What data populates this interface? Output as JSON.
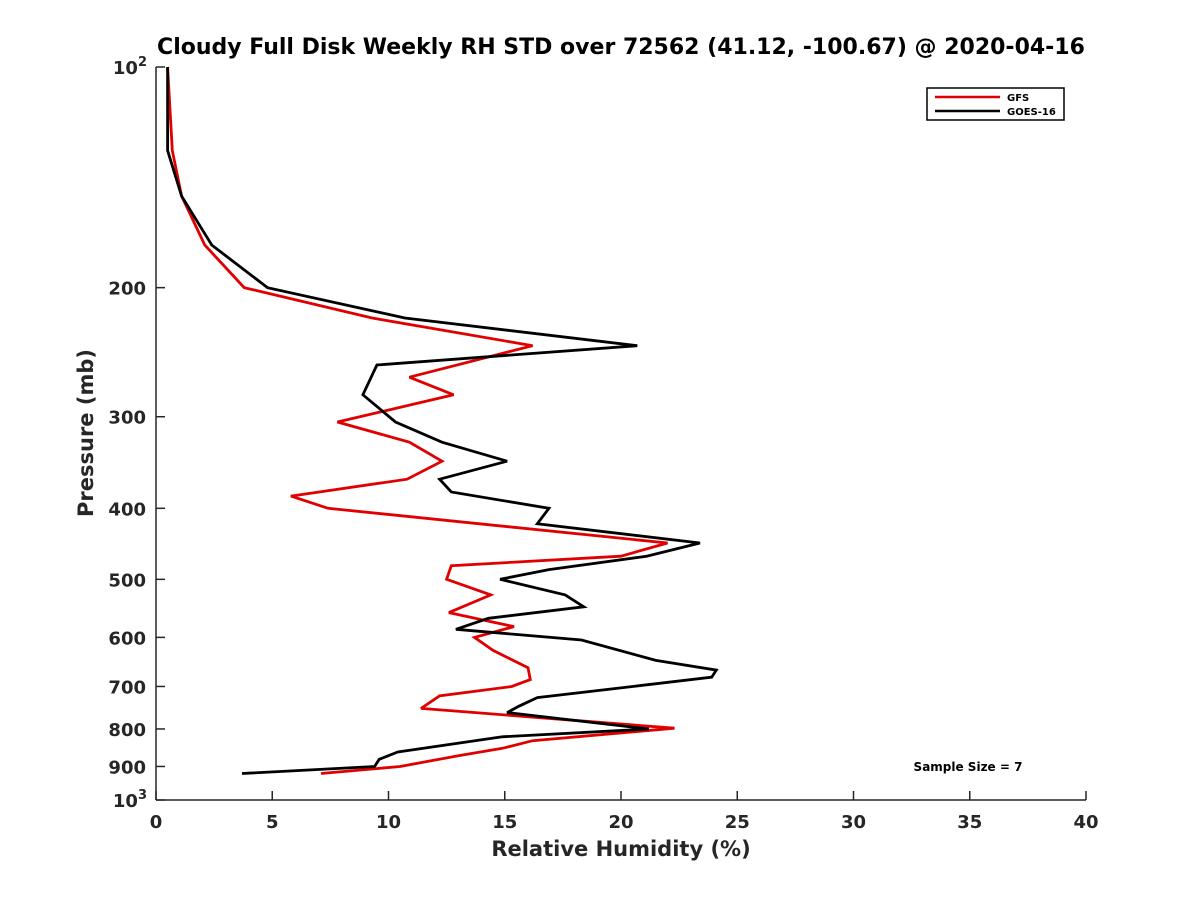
{
  "chart_data": {
    "type": "line",
    "title": "Cloudy Full Disk Weekly RH STD over 72562 (41.12, -100.67) @ 2020-04-16",
    "xlabel": "Relative Humidity (%)",
    "ylabel": "Pressure (mb)",
    "xlim": [
      0,
      40
    ],
    "ylim": [
      100,
      1000
    ],
    "yscale": "log",
    "y_reversed": true,
    "grid": false,
    "legend_position": "top-right",
    "x_ticks": [
      "0",
      "5",
      "10",
      "15",
      "20",
      "25",
      "30",
      "35",
      "40"
    ],
    "y_ticks": [
      {
        "value": 100,
        "base": "10",
        "exp": "2"
      },
      {
        "value": 200,
        "label": "200"
      },
      {
        "value": 300,
        "label": "300"
      },
      {
        "value": 400,
        "label": "400"
      },
      {
        "value": 500,
        "label": "500"
      },
      {
        "value": 600,
        "label": "600"
      },
      {
        "value": 700,
        "label": "700"
      },
      {
        "value": 800,
        "label": "800"
      },
      {
        "value": 900,
        "label": "900"
      },
      {
        "value": 1000,
        "base": "10",
        "exp": "3"
      }
    ],
    "series": [
      {
        "name": "GFS",
        "color": "#e00000",
        "points": [
          [
            0.5,
            100
          ],
          [
            0.7,
            130
          ],
          [
            1.1,
            150
          ],
          [
            2.1,
            175
          ],
          [
            3.8,
            200
          ],
          [
            9.3,
            220
          ],
          [
            16.2,
            240
          ],
          [
            10.9,
            265
          ],
          [
            12.8,
            280
          ],
          [
            7.8,
            305
          ],
          [
            10.9,
            325
          ],
          [
            12.3,
            345
          ],
          [
            10.8,
            365
          ],
          [
            5.8,
            385
          ],
          [
            7.4,
            400
          ],
          [
            22,
            446
          ],
          [
            20,
            465
          ],
          [
            12.7,
            479
          ],
          [
            12.5,
            500
          ],
          [
            14.4,
            525
          ],
          [
            12.6,
            555
          ],
          [
            15.4,
            580
          ],
          [
            13.7,
            600
          ],
          [
            14.5,
            625
          ],
          [
            16,
            660
          ],
          [
            16.1,
            685
          ],
          [
            15.3,
            700
          ],
          [
            12.2,
            721
          ],
          [
            11.4,
            750
          ],
          [
            22.3,
            798
          ],
          [
            16.2,
            830
          ],
          [
            14.9,
            850
          ],
          [
            13,
            870
          ],
          [
            10.5,
            900
          ],
          [
            7.1,
            920
          ]
        ]
      },
      {
        "name": "GOES-16",
        "color": "#000000",
        "points": [
          [
            0.5,
            100
          ],
          [
            0.5,
            130
          ],
          [
            1.1,
            150
          ],
          [
            2.4,
            175
          ],
          [
            4.8,
            200
          ],
          [
            10.7,
            220
          ],
          [
            20.7,
            240
          ],
          [
            9.5,
            255
          ],
          [
            8.9,
            280
          ],
          [
            10.3,
            305
          ],
          [
            12.3,
            325
          ],
          [
            15.1,
            345
          ],
          [
            12.2,
            365
          ],
          [
            12.7,
            380
          ],
          [
            16.9,
            400
          ],
          [
            16.4,
            420
          ],
          [
            23.4,
            446
          ],
          [
            21.1,
            465
          ],
          [
            16.9,
            485
          ],
          [
            14.8,
            500
          ],
          [
            17.6,
            525
          ],
          [
            18.4,
            545
          ],
          [
            14.3,
            565
          ],
          [
            12.9,
            585
          ],
          [
            18.3,
            605
          ],
          [
            21.5,
            645
          ],
          [
            24.1,
            665
          ],
          [
            23.9,
            680
          ],
          [
            20.5,
            700
          ],
          [
            16.4,
            725
          ],
          [
            15.6,
            745
          ],
          [
            15.1,
            760
          ],
          [
            21.2,
            800
          ],
          [
            14.9,
            820
          ],
          [
            10.4,
            860
          ],
          [
            9.6,
            880
          ],
          [
            9.4,
            900
          ],
          [
            3.7,
            920
          ]
        ]
      }
    ],
    "annotation": "Sample Size = 7"
  }
}
